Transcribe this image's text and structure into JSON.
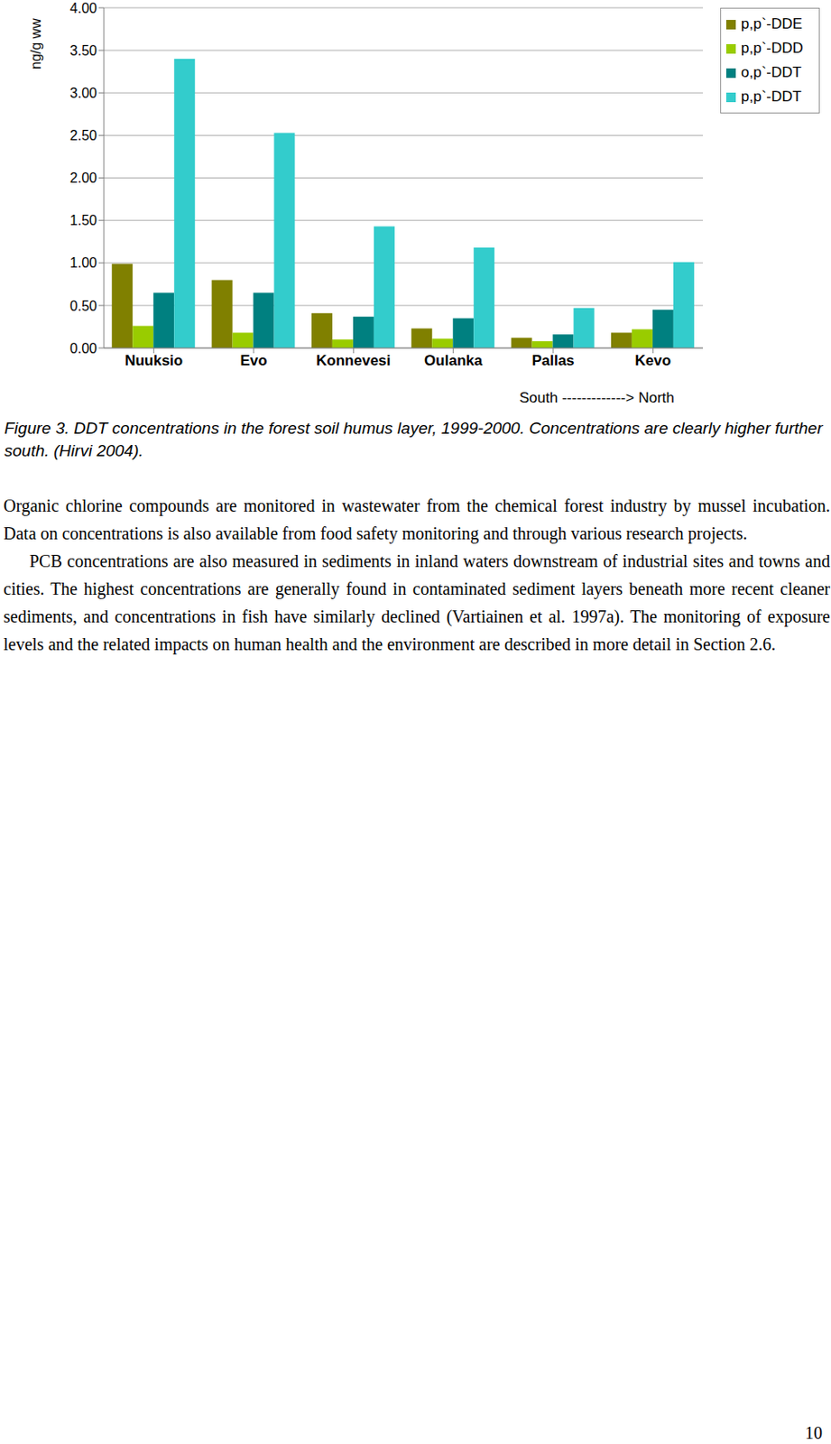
{
  "chart_data": {
    "type": "bar",
    "y_label": "ng/g ww",
    "annotation": "South -------------> North",
    "categories": [
      "Nuuksio",
      "Evo",
      "Konnevesi",
      "Oulanka",
      "Pallas",
      "Kevo"
    ],
    "series": [
      {
        "name": "p,p`-DDE",
        "color": "#808000",
        "values": [
          0.99,
          0.8,
          0.41,
          0.23,
          0.12,
          0.18
        ]
      },
      {
        "name": "p,p`-DDD",
        "color": "#99cc00",
        "values": [
          0.26,
          0.18,
          0.1,
          0.11,
          0.08,
          0.22
        ]
      },
      {
        "name": "o,p`-DDT",
        "color": "#008080",
        "values": [
          0.65,
          0.65,
          0.37,
          0.35,
          0.16,
          0.45
        ]
      },
      {
        "name": "p,p`-DDT",
        "color": "#33cccc",
        "values": [
          3.4,
          2.53,
          1.43,
          1.18,
          0.47,
          1.01
        ]
      }
    ],
    "ylim": [
      0,
      4
    ],
    "yticks": [
      {
        "value": 0,
        "label": "0.00"
      },
      {
        "value": 0.5,
        "label": "0.50"
      },
      {
        "value": 1,
        "label": "1.00"
      },
      {
        "value": 1.5,
        "label": "1.50"
      },
      {
        "value": 2,
        "label": "2.00"
      },
      {
        "value": 2.5,
        "label": "2.50"
      },
      {
        "value": 3,
        "label": "3.00"
      },
      {
        "value": 3.5,
        "label": "3.50"
      },
      {
        "value": 4,
        "label": "4.00"
      }
    ],
    "grid": true,
    "legend": "top right"
  },
  "caption": "Figure 3. DDT concentrations in the forest soil humus layer, 1999-2000. Concentrations are clearly higher further south. (Hirvi 2004).",
  "paragraphs": [
    "Organic chlorine compounds are monitored in wastewater from the chemical forest industry by mussel incubation. Data on concentrations is also available from food safety monitoring and through various research projects.",
    "PCB concentrations are also measured in sediments in inland waters downstream of industrial sites and towns and cities. The highest concentrations are generally found in contaminated sediment layers beneath more recent cleaner sediments, and concentrations in fish have similarly declined (Vartiainen et al. 1997a). The monitoring of exposure levels and the related impacts on human health and the environment are described in more detail in Section 2.6."
  ],
  "page_number": "10"
}
